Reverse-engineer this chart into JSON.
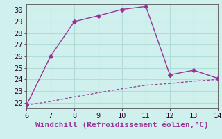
{
  "xlabel": "Windchill (Refroidissement éolien,°C)",
  "x_upper": [
    6,
    7,
    8,
    9,
    10,
    11,
    12,
    13,
    14
  ],
  "y_upper": [
    21.8,
    26.0,
    29.0,
    29.5,
    30.05,
    30.3,
    24.4,
    24.8,
    24.1
  ],
  "x_lower": [
    6,
    7,
    8,
    9,
    10,
    11,
    12,
    13,
    14
  ],
  "y_lower": [
    21.8,
    22.1,
    22.5,
    22.85,
    23.2,
    23.5,
    23.65,
    23.85,
    24.0
  ],
  "line_color": "#993399",
  "bg_color": "#cff0ec",
  "grid_color": "#b0ddd8",
  "xlim": [
    6,
    14
  ],
  "ylim": [
    21.5,
    30.5
  ],
  "xticks": [
    6,
    7,
    8,
    9,
    10,
    11,
    12,
    13,
    14
  ],
  "yticks": [
    22,
    23,
    24,
    25,
    26,
    27,
    28,
    29,
    30
  ],
  "xlabel_fontsize": 8,
  "tick_fontsize": 7.5
}
